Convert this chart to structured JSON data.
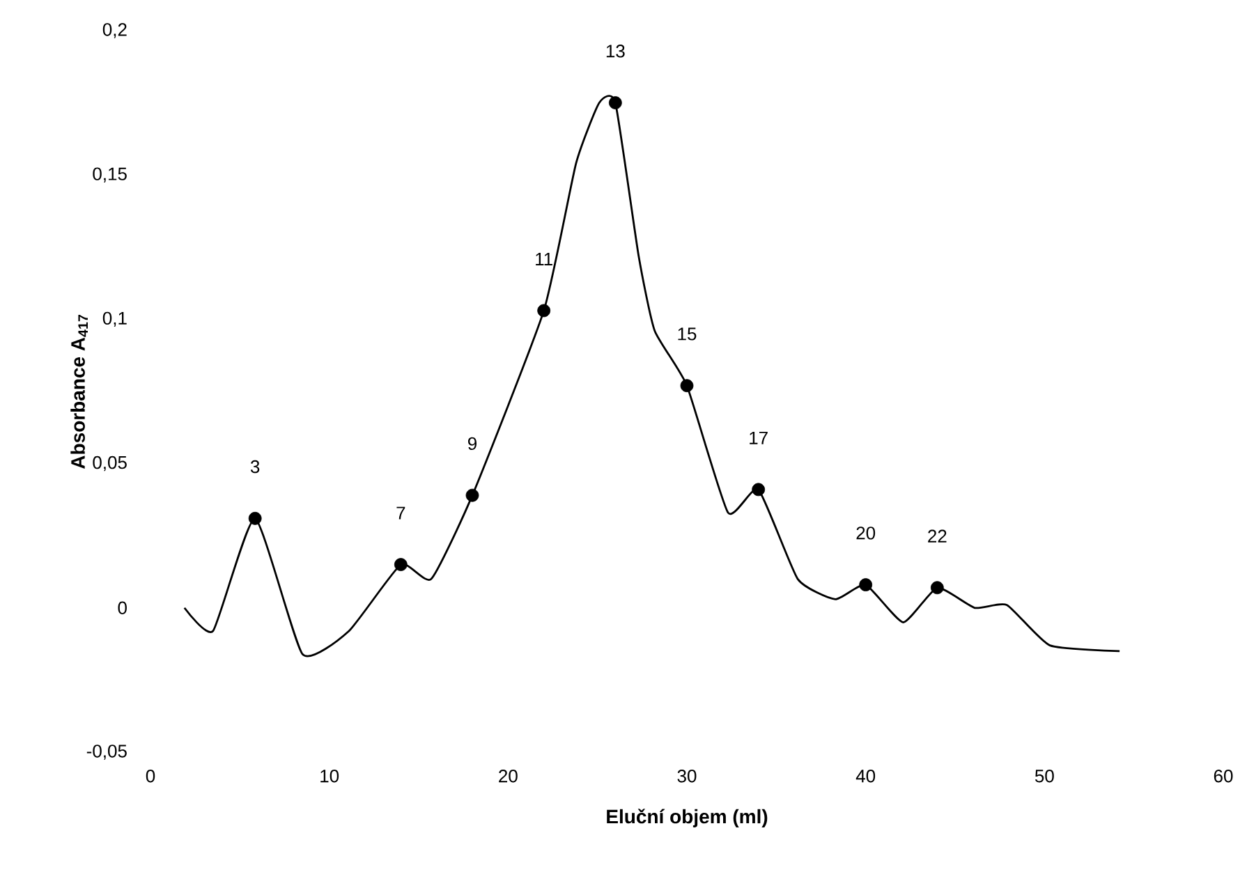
{
  "chart_data": {
    "type": "line",
    "xlabel": "Eluční objem (ml)",
    "ylabel": "Absorbance A$_{417}$",
    "xlim": [
      0,
      60
    ],
    "xticks": [
      0,
      10,
      20,
      30,
      40,
      50,
      60
    ],
    "ylim": [
      -0.05,
      0.2
    ],
    "yticks": [
      {
        "value": -0.05,
        "label": "-0,05"
      },
      {
        "value": 0,
        "label": "0"
      },
      {
        "value": 0.05,
        "label": "0,05"
      },
      {
        "value": 0.1,
        "label": "0,1"
      },
      {
        "value": 0.15,
        "label": "0,15"
      },
      {
        "value": 0.2,
        "label": "0,2"
      }
    ],
    "grid": false,
    "series": [
      {
        "type": "line",
        "color": "#000000",
        "marker": "none",
        "x": [
          1.9,
          3.5,
          5.85,
          8.5,
          11.1,
          14.0,
          15.7,
          18.0,
          22.0,
          23.8,
          25.1,
          26.0,
          27.3,
          28.2,
          30.0,
          32.3,
          34.0,
          36.2,
          38.3,
          40.0,
          42.1,
          44.0,
          46.1,
          47.9,
          50.3,
          54.2
        ],
        "values": [
          0,
          -0.008,
          0.031,
          -0.016,
          -0.008,
          0.015,
          0.01,
          0.039,
          0.103,
          0.154,
          0.175,
          0.175,
          0.122,
          0.096,
          0.077,
          0.033,
          0.041,
          0.01,
          0.003,
          0.008,
          -0.005,
          0.007,
          0,
          0.001,
          -0.013,
          -0.015
        ]
      },
      {
        "type": "scatter",
        "color": "#000000",
        "marker": "circle",
        "x": [
          5.85,
          14.0,
          18.0,
          22.0,
          26.0,
          30.0,
          34.0,
          40.0,
          44.0
        ],
        "values": [
          0.031,
          0.015,
          0.039,
          0.103,
          0.175,
          0.077,
          0.041,
          0.008,
          0.007
        ]
      }
    ],
    "annotations": [
      {
        "text": "3",
        "x": 5.85,
        "y": 0.031
      },
      {
        "text": "7",
        "x": 14.0,
        "y": 0.015
      },
      {
        "text": "9",
        "x": 18.0,
        "y": 0.039
      },
      {
        "text": "11",
        "x": 22.0,
        "y": 0.103
      },
      {
        "text": "13",
        "x": 26.0,
        "y": 0.175
      },
      {
        "text": "15",
        "x": 30.0,
        "y": 0.077
      },
      {
        "text": "17",
        "x": 34.0,
        "y": 0.041
      },
      {
        "text": "20",
        "x": 40.0,
        "y": 0.008
      },
      {
        "text": "22",
        "x": 44.0,
        "y": 0.007
      }
    ]
  }
}
